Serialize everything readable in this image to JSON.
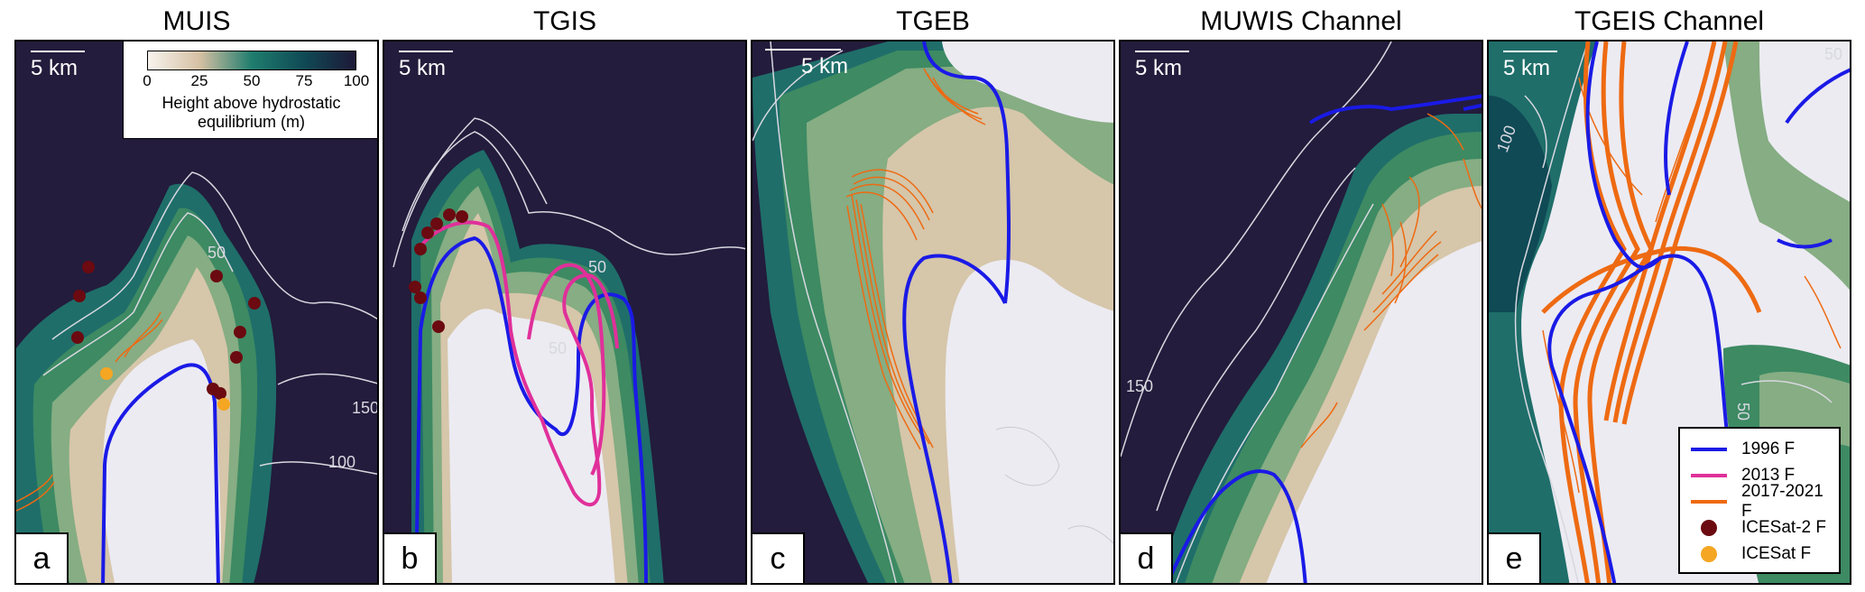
{
  "panels": [
    {
      "id": "a",
      "title": "MUIS",
      "label": "a",
      "scale_text": "5 km"
    },
    {
      "id": "b",
      "title": "TGIS",
      "label": "b",
      "scale_text": "5 km"
    },
    {
      "id": "c",
      "title": "TGEB",
      "label": "c",
      "scale_text": "5 km"
    },
    {
      "id": "d",
      "title": "MUWIS Channel",
      "label": "d",
      "scale_text": "5 km"
    },
    {
      "id": "e",
      "title": "TGEIS Channel",
      "label": "e",
      "scale_text": "5 km"
    }
  ],
  "colorbar": {
    "ticks": [
      "0",
      "25",
      "50",
      "75",
      "100"
    ],
    "label_line1": "Height above hydrostatic",
    "label_line2": "equilibrium (m)",
    "colors": [
      "#f7f3ee",
      "#d5c0a3",
      "#1f7d6e",
      "#0f4a55",
      "#1d1837"
    ]
  },
  "contour_labels": {
    "a": [
      "50",
      "150",
      "100"
    ],
    "b": [
      "50",
      "50"
    ],
    "d": [
      "150"
    ],
    "e": [
      "100",
      "50",
      "50"
    ]
  },
  "legend": {
    "items": [
      {
        "label": "1996 F",
        "kind": "line",
        "color": "#1a1ae6"
      },
      {
        "label": "2013 F",
        "kind": "line",
        "color": "#e0309a"
      },
      {
        "label": "2017-2021 F",
        "kind": "line",
        "color": "#ee6a12"
      },
      {
        "label": "ICESat-2 F",
        "kind": "dot",
        "color": "#6b0a10"
      },
      {
        "label": "ICESat F",
        "kind": "dot",
        "color": "#f5a623"
      }
    ]
  },
  "colors": {
    "ocean": "#231c3c",
    "teal": "#1f6e6a",
    "green": "#3d8a63",
    "lightgreen": "#86ad83",
    "tan": "#d6c6aa",
    "ice": "#ecebf2",
    "contour": "#d8d8e0"
  }
}
